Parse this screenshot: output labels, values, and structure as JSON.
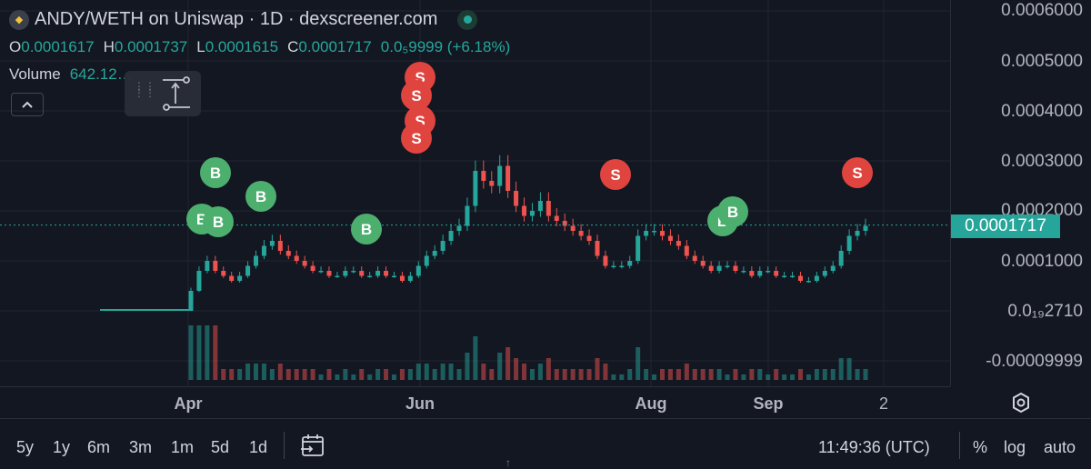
{
  "header": {
    "title": "ANDY/WETH on Uniswap · 1D · dexscreener.com",
    "logo_icon": "andy-token-logo",
    "status_icon": "live-dot-icon"
  },
  "ohlc": {
    "o_label": "O",
    "o_value": "0.0001617",
    "h_label": "H",
    "h_value": "0.0001737",
    "l_label": "L",
    "l_value": "0.0001615",
    "c_label": "C",
    "c_value": "0.0001717",
    "change": "0.0₅9999 (+6.18%)"
  },
  "volume": {
    "label": "Volume",
    "value": "642.12…"
  },
  "price_axis": {
    "labels": [
      "0.0006000",
      "0.0005000",
      "0.0004000",
      "0.0003000",
      "0.0002000",
      "0.0001000",
      "0.0₁₉2710",
      "-0.00009999"
    ],
    "current_price": "0.0001717"
  },
  "time_axis": {
    "labels": [
      "Apr",
      "Jun",
      "Aug",
      "Sep",
      "2"
    ]
  },
  "colors": {
    "background": "#131722",
    "up": "#26a69a",
    "down": "#ef5350",
    "buy_marker": "#4caf6e",
    "sell_marker": "#e0443e"
  },
  "markers": {
    "buy_label": "B",
    "sell_label": "S"
  },
  "bottom_bar": {
    "ranges": [
      "5y",
      "1y",
      "6m",
      "3m",
      "1m",
      "5d",
      "1d"
    ],
    "time": "11:49:36 (UTC)",
    "percent": "%",
    "log": "log",
    "auto": "auto"
  },
  "chart_data": {
    "type": "candlestick",
    "title": "ANDY/WETH on Uniswap · 1D",
    "x_ticks": [
      "Apr",
      "Jun",
      "Aug",
      "Sep",
      "2"
    ],
    "y_ticks": [
      0.0006,
      0.0005,
      0.0004,
      0.0003,
      0.0002,
      0.0001,
      0.0,
      -9.999e-05
    ],
    "last_close": 0.0001717,
    "close_series_approx": [
      [
        0.0,
        0.0,
        0.0,
        0.0,
        0.0,
        0.0,
        0.0,
        0.0,
        0.0,
        0.0,
        0.0,
        0.0,
        0.0,
        0.0,
        0.0,
        0.0,
        0.0,
        0.0,
        0.0,
        0.0,
        0.0,
        0.0,
        0.0,
        0.0,
        0.0,
        0.0,
        0.0,
        0.0
      ],
      [
        4e-05,
        8e-05,
        0.0001,
        8e-05,
        7e-05,
        6e-05,
        7e-05,
        9e-05,
        0.00011,
        0.00013,
        0.00014,
        0.00012,
        0.00011,
        0.0001,
        9e-05,
        8e-05,
        8e-05,
        7e-05,
        7e-05,
        8e-05,
        8e-05,
        7e-05,
        7e-05,
        8e-05,
        7e-05,
        7e-05,
        6e-05,
        7e-05,
        9e-05,
        0.00011,
        0.00012,
        0.00014,
        0.00016,
        0.00017,
        0.00021,
        0.00028,
        0.00026,
        0.00025,
        0.00029,
        0.00024,
        0.00021,
        0.00019,
        0.0002,
        0.00022,
        0.00019,
        0.00018,
        0.00017,
        0.00016,
        0.00015,
        0.00014,
        0.00011,
        9e-05,
        9e-05,
        9e-05,
        0.0001,
        0.00015,
        0.00016,
        0.00016,
        0.00015,
        0.00014,
        0.00013,
        0.00011,
        0.0001,
        9e-05,
        8e-05,
        9e-05,
        9e-05,
        8e-05,
        8e-05,
        7e-05,
        8e-05,
        8e-05,
        7e-05,
        7e-05,
        7e-05,
        6e-05,
        6e-05,
        7e-05,
        8e-05,
        9e-05,
        0.00012,
        0.00015,
        0.00016,
        0.00017
      ]
    ]
  }
}
